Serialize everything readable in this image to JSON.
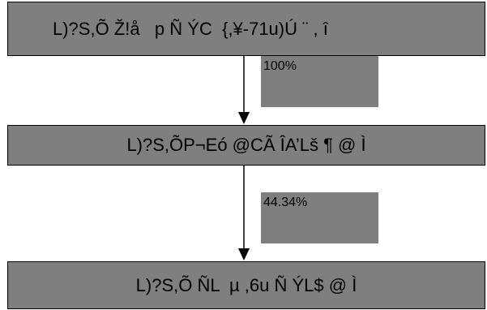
{
  "boxes": [
    {
      "label": "L)?S,Õ Ž!å   p Ñ ÝC  {,¥-71u)Ú ¨ , î"
    },
    {
      "label": "L)?S,ÕP¬Eó @CÃ ÎA’Lš ¶ @ Ì"
    },
    {
      "label": "L)?S,Õ ÑL  µ ,6u Ñ ÝL$ @ Ì"
    }
  ],
  "transitions": [
    {
      "percent": "100%"
    },
    {
      "percent": "44.34%"
    }
  ]
}
